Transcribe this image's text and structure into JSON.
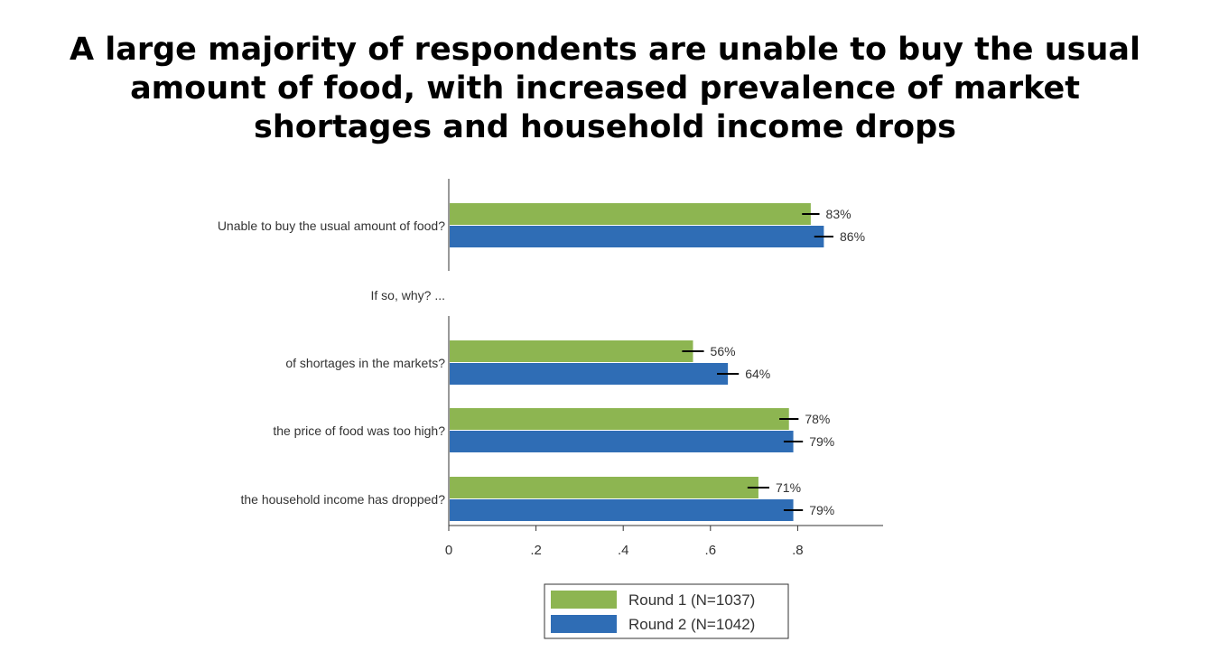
{
  "title_lines": [
    "A large majority of respondents are unable to buy the usual",
    "amount of food, with increased prevalence of market",
    "shortages and household income drops"
  ],
  "colors": {
    "round1": "#8db551",
    "round2": "#2f6db5",
    "axis": "#333333",
    "errbar": "#000000"
  },
  "chart_data": {
    "type": "bar",
    "orientation": "horizontal",
    "categories": [
      "Unable to buy the usual amount of food?",
      "If so, why? ...",
      "of shortages in the markets?",
      "the price of food was too high?",
      "the household income has dropped?"
    ],
    "series": [
      {
        "name": "Round 1 (N=1037)",
        "values": [
          0.83,
          null,
          0.56,
          0.78,
          0.71
        ],
        "labels": [
          "83%",
          "",
          "56%",
          "78%",
          "71%"
        ],
        "errors": [
          0.02,
          null,
          0.025,
          0.022,
          0.025
        ]
      },
      {
        "name": "Round 2 (N=1042)",
        "values": [
          0.86,
          null,
          0.64,
          0.79,
          0.79
        ],
        "labels": [
          "86%",
          "",
          "64%",
          "79%",
          "79%"
        ],
        "errors": [
          0.022,
          null,
          0.025,
          0.022,
          0.022
        ]
      }
    ],
    "xlim": [
      0,
      1
    ],
    "xticks": [
      0,
      0.2,
      0.4,
      0.6,
      0.8
    ],
    "xtick_labels": [
      "0",
      ".2",
      ".4",
      ".6",
      ".8"
    ],
    "legend_placement": "bottom-center",
    "grid": false
  }
}
